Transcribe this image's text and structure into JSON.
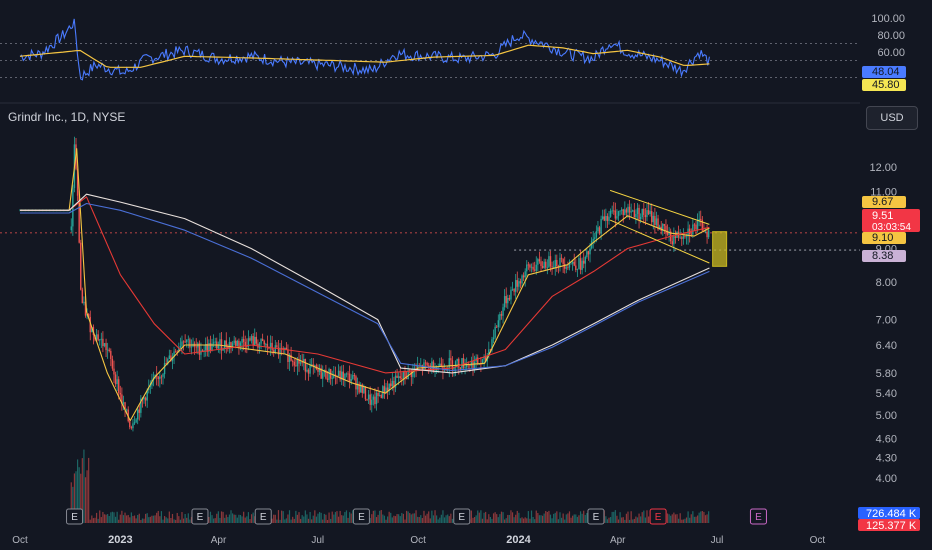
{
  "title": "Grindr Inc., 1D, NYSE",
  "currency_button": "USD",
  "colors": {
    "background": "#131722",
    "candle_up": "#26a69a",
    "candle_down": "#ef5350",
    "ma_fast": "#f5c542",
    "ma_mid": "#e53935",
    "ma_slow_white": "#e8e0dc",
    "ma_slow_blue": "#4a6fd6",
    "rsi": "#4a7bff",
    "rsi_ma": "#f5c542",
    "pattern": "#f5d442",
    "target_box": "#c8b820"
  },
  "chart_data": [
    {
      "type": "candlestick",
      "title": "Grindr Inc., 1D, NYSE",
      "scale": "log",
      "ylim": [
        3.75,
        13.2
      ],
      "price_ticks": [
        "12.00",
        "11.00",
        "10.00",
        "9.00",
        "8.00",
        "7.00",
        "6.40",
        "5.80",
        "5.40",
        "5.00",
        "4.60",
        "4.30",
        "4.00"
      ],
      "time_ticks": [
        "Oct",
        "2023",
        "Apr",
        "Jul",
        "Oct",
        "2024",
        "Apr",
        "Jul",
        "Oct"
      ],
      "price_labels": [
        {
          "value": "9.67",
          "kind": "ma_fast"
        },
        {
          "value": "9.51",
          "kind": "last"
        },
        {
          "value": "03:03:54",
          "kind": "countdown"
        },
        {
          "value": "9.10",
          "kind": "ma_fast"
        },
        {
          "value": "8.38",
          "kind": "ma_slow"
        }
      ],
      "close_path": [
        [
          "2022-11-17",
          9.6
        ],
        [
          "2022-11-20",
          13.0
        ],
        [
          "2022-11-22",
          11.5
        ],
        [
          "2022-11-26",
          7.5
        ],
        [
          "2022-12-05",
          6.8
        ],
        [
          "2022-12-20",
          6.3
        ],
        [
          "2023-01-03",
          5.2
        ],
        [
          "2023-01-10",
          4.8
        ],
        [
          "2023-01-25",
          5.4
        ],
        [
          "2023-02-10",
          5.9
        ],
        [
          "2023-03-01",
          6.6
        ],
        [
          "2023-03-10",
          6.3
        ],
        [
          "2023-04-01",
          6.4
        ],
        [
          "2023-05-01",
          6.5
        ],
        [
          "2023-06-01",
          6.2
        ],
        [
          "2023-07-01",
          5.8
        ],
        [
          "2023-08-01",
          5.7
        ],
        [
          "2023-08-20",
          5.2
        ],
        [
          "2023-09-01",
          5.5
        ],
        [
          "2023-10-01",
          5.9
        ],
        [
          "2023-11-01",
          6.0
        ],
        [
          "2023-12-01",
          6.0
        ],
        [
          "2023-12-20",
          7.5
        ],
        [
          "2024-01-10",
          8.4
        ],
        [
          "2024-02-01",
          8.6
        ],
        [
          "2024-03-01",
          8.5
        ],
        [
          "2024-03-20",
          10.1
        ],
        [
          "2024-04-10",
          10.3
        ],
        [
          "2024-05-01",
          10.1
        ],
        [
          "2024-05-20",
          9.3
        ],
        [
          "2024-06-15",
          9.8
        ],
        [
          "2024-06-24",
          9.51
        ]
      ],
      "moving_averages": [
        {
          "name": "fast",
          "points": [
            [
              "2022-10-01",
              10.3
            ],
            [
              "2022-11-15",
              10.3
            ],
            [
              "2022-11-22",
              12.8
            ],
            [
              "2022-12-01",
              7.2
            ],
            [
              "2022-12-20",
              5.8
            ],
            [
              "2023-01-10",
              4.9
            ],
            [
              "2023-02-01",
              5.7
            ],
            [
              "2023-03-01",
              6.4
            ],
            [
              "2023-04-01",
              6.4
            ],
            [
              "2023-06-01",
              6.2
            ],
            [
              "2023-08-01",
              5.6
            ],
            [
              "2023-09-01",
              5.4
            ],
            [
              "2023-10-01",
              5.9
            ],
            [
              "2023-12-01",
              6.0
            ],
            [
              "2024-01-10",
              8.2
            ],
            [
              "2024-02-15",
              8.5
            ],
            [
              "2024-03-10",
              9.2
            ],
            [
              "2024-04-10",
              10.1
            ],
            [
              "2024-05-20",
              9.5
            ],
            [
              "2024-06-10",
              9.4
            ],
            [
              "2024-06-24",
              9.67
            ]
          ]
        },
        {
          "name": "mid",
          "points": [
            [
              "2022-10-01",
              10.3
            ],
            [
              "2022-11-15",
              10.3
            ],
            [
              "2022-12-01",
              10.8
            ],
            [
              "2023-01-01",
              8.2
            ],
            [
              "2023-02-01",
              6.9
            ],
            [
              "2023-03-01",
              6.2
            ],
            [
              "2023-05-01",
              6.4
            ],
            [
              "2023-07-01",
              6.2
            ],
            [
              "2023-09-01",
              5.8
            ],
            [
              "2023-11-01",
              5.9
            ],
            [
              "2023-12-20",
              6.3
            ],
            [
              "2024-02-01",
              7.6
            ],
            [
              "2024-03-10",
              8.3
            ],
            [
              "2024-04-10",
              9.0
            ],
            [
              "2024-05-20",
              9.4
            ],
            [
              "2024-06-24",
              9.7
            ]
          ]
        },
        {
          "name": "slow_white",
          "points": [
            [
              "2022-10-01",
              10.3
            ],
            [
              "2022-11-15",
              10.3
            ],
            [
              "2022-12-01",
              10.9
            ],
            [
              "2023-01-01",
              10.6
            ],
            [
              "2023-03-01",
              10.0
            ],
            [
              "2023-05-01",
              9.0
            ],
            [
              "2023-07-01",
              7.9
            ],
            [
              "2023-08-25",
              7.0
            ],
            [
              "2023-09-15",
              5.9
            ],
            [
              "2023-11-01",
              5.8
            ],
            [
              "2023-12-20",
              5.95
            ],
            [
              "2024-02-01",
              6.4
            ],
            [
              "2024-03-10",
              6.9
            ],
            [
              "2024-04-20",
              7.5
            ],
            [
              "2024-06-24",
              8.4
            ]
          ]
        },
        {
          "name": "slow_blue",
          "points": [
            [
              "2022-10-01",
              10.2
            ],
            [
              "2022-11-15",
              10.2
            ],
            [
              "2022-12-01",
              10.55
            ],
            [
              "2023-01-01",
              10.3
            ],
            [
              "2023-03-01",
              9.6
            ],
            [
              "2023-05-01",
              8.7
            ],
            [
              "2023-07-01",
              7.7
            ],
            [
              "2023-08-25",
              6.9
            ],
            [
              "2023-09-15",
              6.0
            ],
            [
              "2023-11-01",
              5.85
            ],
            [
              "2023-12-20",
              5.95
            ],
            [
              "2024-02-01",
              6.35
            ],
            [
              "2024-03-10",
              6.85
            ],
            [
              "2024-04-20",
              7.45
            ],
            [
              "2024-06-24",
              8.3
            ]
          ]
        }
      ],
      "horizontal_levels": [
        9.51,
        8.95
      ],
      "channel_lines": [
        [
          [
            "2024-03-25",
            11.05
          ],
          [
            "2024-06-24",
            9.8
          ]
        ],
        [
          [
            "2024-03-25",
            9.95
          ],
          [
            "2024-06-24",
            8.55
          ]
        ]
      ],
      "target_zone": {
        "x": [
          "2024-06-27",
          "2024-07-05"
        ],
        "y": [
          8.45,
          9.55
        ]
      },
      "earnings_markers": [
        "2022-11-20",
        "2023-03-15",
        "2023-05-12",
        "2023-08-10",
        "2023-11-10",
        "2024-03-12",
        "2024-05-08",
        "2024-08-08"
      ],
      "volume_labels": [
        {
          "value": "726.484 K",
          "kind": "average"
        },
        {
          "value": "125.377 K",
          "kind": "current"
        }
      ]
    },
    {
      "type": "line",
      "title": "",
      "ylim": [
        0,
        100
      ],
      "ticks": [
        "100.00",
        "80.00",
        "60.00"
      ],
      "guide_levels": [
        70,
        50,
        30
      ],
      "labels": [
        {
          "value": "48.04",
          "kind": "rsi"
        },
        {
          "value": "45.80",
          "kind": "rsi_ma"
        }
      ],
      "series": [
        {
          "name": "rsi",
          "points": [
            [
              "2022-10-01",
              55
            ],
            [
              "2022-10-20",
              58
            ],
            [
              "2022-11-10",
              80
            ],
            [
              "2022-11-20",
              96
            ],
            [
              "2022-11-25",
              30
            ],
            [
              "2022-12-10",
              45
            ],
            [
              "2023-01-05",
              35
            ],
            [
              "2023-01-25",
              52
            ],
            [
              "2023-03-01",
              62
            ],
            [
              "2023-04-01",
              52
            ],
            [
              "2023-05-01",
              55
            ],
            [
              "2023-06-01",
              48
            ],
            [
              "2023-07-15",
              44
            ],
            [
              "2023-08-20",
              38
            ],
            [
              "2023-09-10",
              58
            ],
            [
              "2023-10-10",
              55
            ],
            [
              "2023-11-10",
              52
            ],
            [
              "2023-12-10",
              57
            ],
            [
              "2024-01-01",
              80
            ],
            [
              "2024-01-20",
              72
            ],
            [
              "2024-02-15",
              58
            ],
            [
              "2024-03-10",
              52
            ],
            [
              "2024-03-25",
              72
            ],
            [
              "2024-04-10",
              60
            ],
            [
              "2024-05-10",
              50
            ],
            [
              "2024-05-30",
              38
            ],
            [
              "2024-06-15",
              60
            ],
            [
              "2024-06-24",
              48
            ]
          ]
        },
        {
          "name": "rsi_ma",
          "points": [
            [
              "2022-10-01",
              55
            ],
            [
              "2022-11-10",
              60
            ],
            [
              "2022-11-25",
              62
            ],
            [
              "2022-12-20",
              42
            ],
            [
              "2023-01-20",
              42
            ],
            [
              "2023-03-01",
              55
            ],
            [
              "2023-05-01",
              53
            ],
            [
              "2023-07-15",
              50
            ],
            [
              "2023-09-01",
              48
            ],
            [
              "2023-10-15",
              54
            ],
            [
              "2023-12-10",
              56
            ],
            [
              "2024-01-10",
              68
            ],
            [
              "2024-02-10",
              65
            ],
            [
              "2024-03-10",
              58
            ],
            [
              "2024-04-10",
              62
            ],
            [
              "2024-05-10",
              54
            ],
            [
              "2024-06-01",
              44
            ],
            [
              "2024-06-24",
              46
            ]
          ]
        }
      ]
    }
  ]
}
